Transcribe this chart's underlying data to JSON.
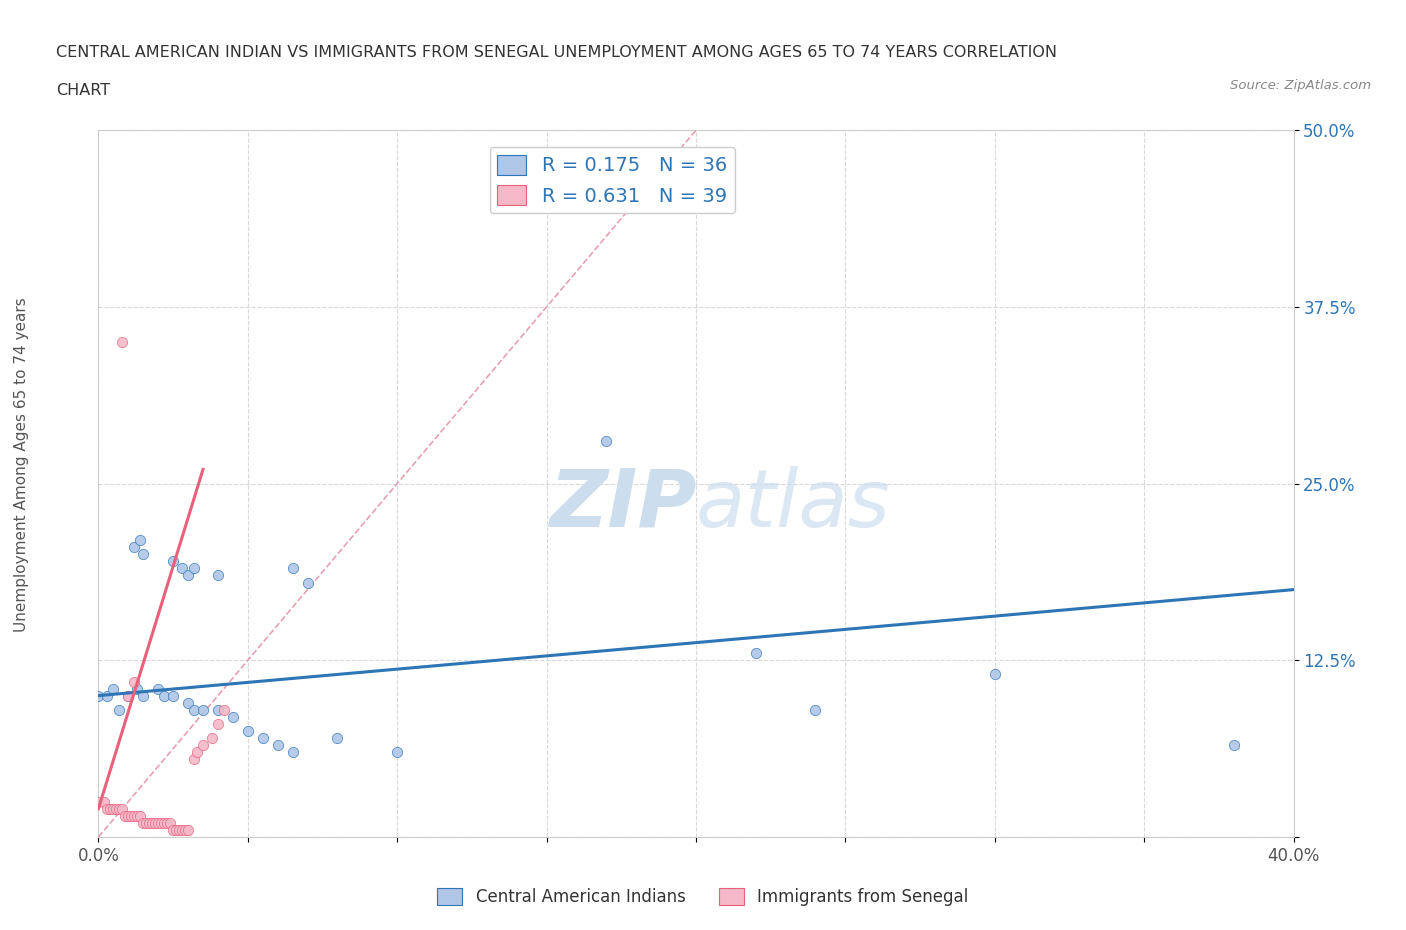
{
  "title_line1": "CENTRAL AMERICAN INDIAN VS IMMIGRANTS FROM SENEGAL UNEMPLOYMENT AMONG AGES 65 TO 74 YEARS CORRELATION",
  "title_line2": "CHART",
  "source_text": "Source: ZipAtlas.com",
  "ylabel": "Unemployment Among Ages 65 to 74 years",
  "xlim": [
    0.0,
    0.4
  ],
  "ylim": [
    0.0,
    0.5
  ],
  "xticks": [
    0.0,
    0.05,
    0.1,
    0.15,
    0.2,
    0.25,
    0.3,
    0.35,
    0.4
  ],
  "xticklabels": [
    "0.0%",
    "",
    "",
    "",
    "",
    "",
    "",
    "",
    "40.0%"
  ],
  "yticks": [
    0.0,
    0.125,
    0.25,
    0.375,
    0.5
  ],
  "yticklabels": [
    "",
    "12.5%",
    "25.0%",
    "37.5%",
    "50.0%"
  ],
  "r_blue": 0.175,
  "n_blue": 36,
  "r_pink": 0.631,
  "n_pink": 39,
  "blue_color": "#aec6e8",
  "pink_color": "#f4b8c8",
  "blue_line_color": "#2e75b6",
  "pink_line_color": "#e8607a",
  "dashed_line_color": "#e8a0b0",
  "grid_color": "#d8d8d8",
  "watermark_color": "#ccdded",
  "legend_r_color": "#2e75b6",
  "blue_trend": [
    0.0,
    0.1,
    0.4,
    0.175
  ],
  "pink_trend_solid": [
    0.0,
    0.0,
    0.04,
    0.25
  ],
  "pink_trend_dashed": [
    0.04,
    0.25,
    0.2,
    0.5
  ],
  "blue_scatter": [
    [
      0.0,
      0.1
    ],
    [
      0.003,
      0.1
    ],
    [
      0.005,
      0.105
    ],
    [
      0.007,
      0.09
    ],
    [
      0.01,
      0.1
    ],
    [
      0.013,
      0.105
    ],
    [
      0.015,
      0.1
    ],
    [
      0.02,
      0.105
    ],
    [
      0.022,
      0.1
    ],
    [
      0.025,
      0.1
    ],
    [
      0.03,
      0.095
    ],
    [
      0.032,
      0.09
    ],
    [
      0.035,
      0.09
    ],
    [
      0.04,
      0.09
    ],
    [
      0.045,
      0.085
    ],
    [
      0.012,
      0.205
    ],
    [
      0.014,
      0.21
    ],
    [
      0.015,
      0.2
    ],
    [
      0.025,
      0.195
    ],
    [
      0.028,
      0.19
    ],
    [
      0.03,
      0.185
    ],
    [
      0.032,
      0.19
    ],
    [
      0.04,
      0.185
    ],
    [
      0.065,
      0.19
    ],
    [
      0.07,
      0.18
    ],
    [
      0.08,
      0.07
    ],
    [
      0.17,
      0.28
    ],
    [
      0.22,
      0.13
    ],
    [
      0.3,
      0.115
    ],
    [
      0.24,
      0.09
    ],
    [
      0.38,
      0.065
    ],
    [
      0.05,
      0.075
    ],
    [
      0.055,
      0.07
    ],
    [
      0.06,
      0.065
    ],
    [
      0.065,
      0.06
    ],
    [
      0.1,
      0.06
    ]
  ],
  "pink_scatter": [
    [
      0.0,
      0.025
    ],
    [
      0.002,
      0.025
    ],
    [
      0.003,
      0.02
    ],
    [
      0.004,
      0.02
    ],
    [
      0.005,
      0.02
    ],
    [
      0.006,
      0.02
    ],
    [
      0.007,
      0.02
    ],
    [
      0.008,
      0.02
    ],
    [
      0.009,
      0.015
    ],
    [
      0.01,
      0.015
    ],
    [
      0.011,
      0.015
    ],
    [
      0.012,
      0.015
    ],
    [
      0.013,
      0.015
    ],
    [
      0.014,
      0.015
    ],
    [
      0.015,
      0.01
    ],
    [
      0.016,
      0.01
    ],
    [
      0.017,
      0.01
    ],
    [
      0.018,
      0.01
    ],
    [
      0.019,
      0.01
    ],
    [
      0.02,
      0.01
    ],
    [
      0.021,
      0.01
    ],
    [
      0.022,
      0.01
    ],
    [
      0.023,
      0.01
    ],
    [
      0.024,
      0.01
    ],
    [
      0.025,
      0.005
    ],
    [
      0.026,
      0.005
    ],
    [
      0.027,
      0.005
    ],
    [
      0.028,
      0.005
    ],
    [
      0.029,
      0.005
    ],
    [
      0.03,
      0.005
    ],
    [
      0.032,
      0.055
    ],
    [
      0.033,
      0.06
    ],
    [
      0.035,
      0.065
    ],
    [
      0.038,
      0.07
    ],
    [
      0.04,
      0.08
    ],
    [
      0.042,
      0.09
    ],
    [
      0.008,
      0.35
    ],
    [
      0.01,
      0.1
    ],
    [
      0.012,
      0.11
    ]
  ]
}
